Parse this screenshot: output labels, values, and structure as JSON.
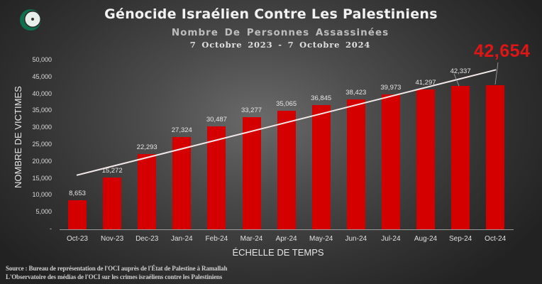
{
  "header": {
    "title": "Génocide Israélien Contre Les Palestiniens",
    "subtitle": "Nombre De Personnes Assassinées",
    "date_range": "7 Octobre 2023 - 7 Octobre 2024",
    "highlight_value": "42,654",
    "logo": "oic-crescent-logo-icon"
  },
  "colors": {
    "bar": "#d40000",
    "highlight": "#e01515",
    "trendline": "#f0e6e6",
    "background": "#4c4c4c"
  },
  "source": {
    "line1": "Source : Bureau de représentation de l'OCI auprès de l'État de Palestine à Ramallah",
    "line2": "L'Observatoire des médias de l'OCI sur les crimes israéliens contre les Palestiniens"
  },
  "chart_data": {
    "type": "bar",
    "title": "Génocide Israélien Contre Les Palestiniens",
    "subtitle": "Nombre De Personnes Assassinées — 7 Octobre 2023 - 7 Octobre 2024",
    "xlabel": "ÉCHELLE DE TEMPS",
    "ylabel": "NOMBRE DE VICTIMES",
    "categories": [
      "Oct-23",
      "Nov-23",
      "Dec-23",
      "Jan-24",
      "Feb-24",
      "Mar-24",
      "Apr-24",
      "May-24",
      "Jun-24",
      "Jul-24",
      "Aug-24",
      "Sep-24",
      "Oct-24"
    ],
    "values": [
      8653,
      15272,
      22293,
      27324,
      30487,
      33277,
      35065,
      36845,
      38423,
      39973,
      41297,
      42337,
      42654
    ],
    "value_labels": [
      "8,653",
      "15,272",
      "22,293",
      "27,324",
      "30,487",
      "33,277",
      "35,065",
      "36,845",
      "38,423",
      "39,973",
      "41,297",
      "42,337",
      "42,654"
    ],
    "ylim": [
      0,
      50000
    ],
    "yticks": [
      "-",
      "5,000",
      "10,000",
      "15,000",
      "20,000",
      "25,000",
      "30,000",
      "35,000",
      "40,000",
      "45,000",
      "50,000"
    ],
    "trendline": {
      "type": "linear",
      "start_value": 16000,
      "end_value": 47200
    },
    "annotations": [
      {
        "text": "42,654",
        "target": "Oct-24",
        "color": "#e01515"
      }
    ],
    "grid": false,
    "legend": "none"
  }
}
